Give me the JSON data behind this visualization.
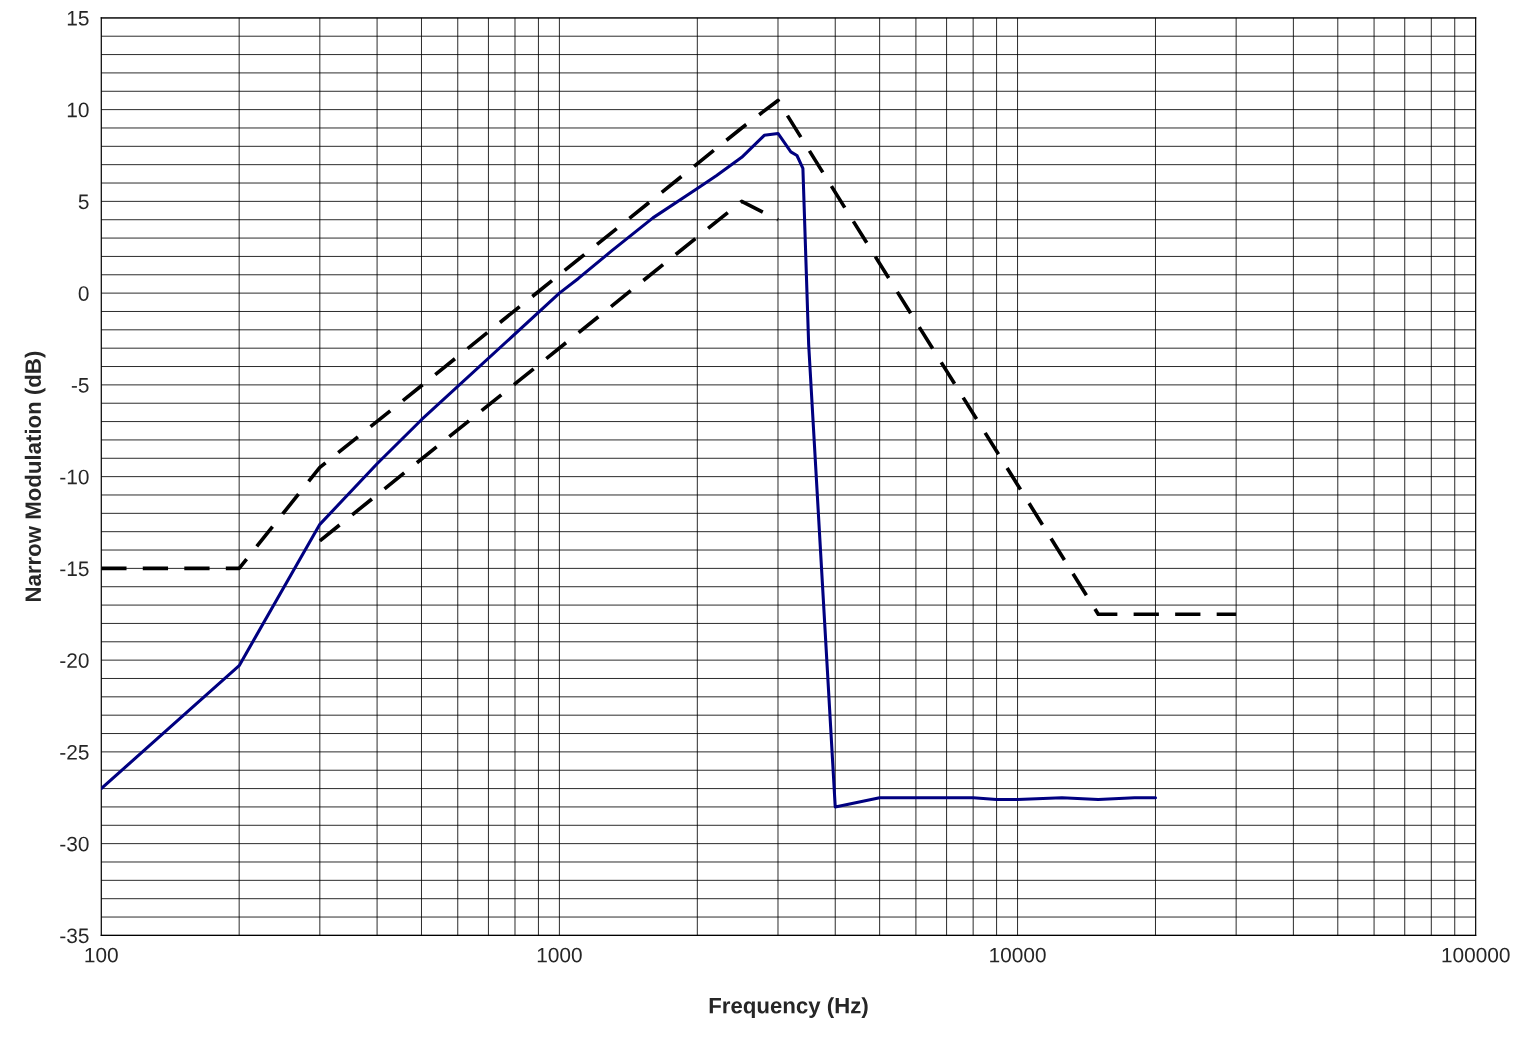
{
  "chart_data": {
    "type": "line",
    "xlabel": "Frequency (Hz)",
    "ylabel": "Narrow Modulation (dB)",
    "log": "x",
    "xlim": [
      100,
      100000
    ],
    "xticks": [
      100,
      1000,
      10000,
      100000
    ],
    "ylim": [
      -35,
      15
    ],
    "yticks": [
      -35,
      -30,
      -25,
      -20,
      -15,
      -10,
      -5,
      0,
      5,
      10,
      15
    ],
    "grid": true,
    "legend": false,
    "series": [
      {
        "color": "#000080",
        "line_style": "solid",
        "x": [
          100,
          200,
          300,
          400,
          500,
          1000,
          1100,
          1300,
          1600,
          2000,
          2200,
          2500,
          2800,
          3000,
          3200,
          3300,
          3400,
          3500,
          4000,
          5000,
          8000,
          9000,
          10000,
          12500,
          15000,
          18000,
          20000
        ],
        "values": [
          -27,
          -20.3,
          -12.6,
          -9.3,
          -6.9,
          0,
          0.8,
          2.3,
          4.1,
          5.7,
          6.4,
          7.4,
          8.6,
          8.7,
          7.7,
          7.5,
          6.8,
          -2.8,
          -28,
          -27.5,
          -27.5,
          -27.6,
          -27.6,
          -27.5,
          -27.6,
          -27.5,
          -27.5
        ]
      },
      {
        "color": "#000000",
        "line_style": "dashed",
        "x": [
          100,
          200,
          300,
          2500,
          3000,
          15000,
          30000
        ],
        "values": [
          -15,
          -15,
          -9.5,
          9,
          10.5,
          -17.5,
          -17.5
        ]
      },
      {
        "color": "#000000",
        "line_style": "dashed",
        "x": [
          300,
          2500,
          3000
        ],
        "values": [
          -13.5,
          5,
          4
        ]
      }
    ]
  }
}
